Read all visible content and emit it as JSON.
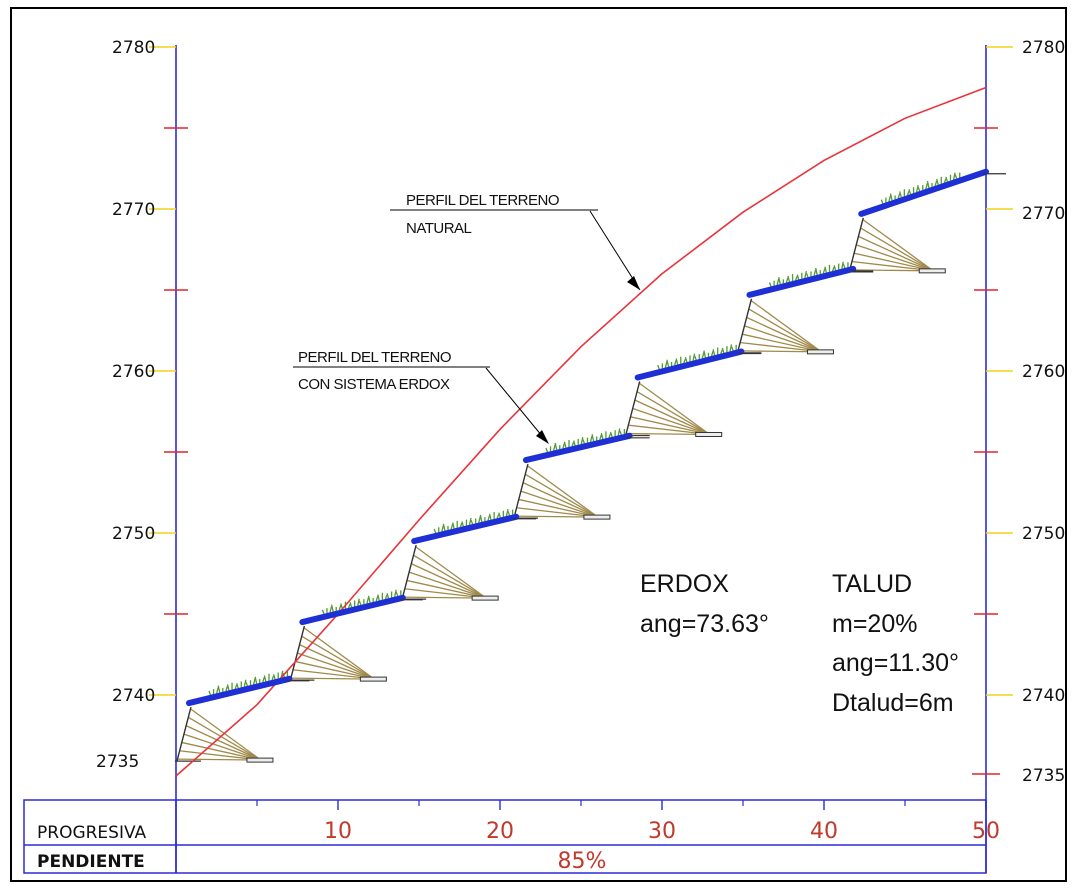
{
  "chart_data": {
    "type": "line",
    "ylim": [
      2735,
      2780
    ],
    "xlim": [
      0,
      50
    ],
    "y_ticks": [
      "2780",
      "2770",
      "2760",
      "2750",
      "2740",
      "2735"
    ],
    "x_ticks": [
      "10",
      "20",
      "30",
      "40",
      "50"
    ],
    "series": [
      {
        "name": "PERFIL DEL TERRENO NATURAL",
        "color": "#e8333a",
        "x": [
          0,
          5,
          10,
          15,
          20,
          25,
          30,
          35,
          40,
          45,
          50
        ],
        "y": [
          2735,
          2739.4,
          2745,
          2750.8,
          2756.4,
          2761.5,
          2766,
          2769.8,
          2773,
          2775.6,
          2777.5
        ]
      },
      {
        "name": "PERFIL DEL TERRENO CON SISTEMA ERDOX",
        "color": "#1e2fd6",
        "steps": [
          {
            "x_start": 0.8,
            "x_end": 7,
            "y_start": 2739.5,
            "y_end": 2741
          },
          {
            "x_start": 7.8,
            "x_end": 14,
            "y_start": 2744.5,
            "y_end": 2746
          },
          {
            "x_start": 14.7,
            "x_end": 21,
            "y_start": 2749.5,
            "y_end": 2751
          },
          {
            "x_start": 21.6,
            "x_end": 28,
            "y_start": 2754.5,
            "y_end": 2756
          },
          {
            "x_start": 28.5,
            "x_end": 34.9,
            "y_start": 2759.6,
            "y_end": 2761.2
          },
          {
            "x_start": 35.4,
            "x_end": 41.8,
            "y_start": 2764.7,
            "y_end": 2766.3
          },
          {
            "x_start": 42.3,
            "x_end": 50,
            "y_start": 2769.7,
            "y_end": 2772.3
          }
        ]
      }
    ]
  },
  "annotations": {
    "natural_line1": "PERFIL DEL TERRENO",
    "natural_line2": "NATURAL",
    "erdox_line1": "PERFIL DEL TERRENO",
    "erdox_line2": "CON SISTEMA ERDOX"
  },
  "erdox": {
    "title": "ERDOX",
    "angle": "ang=73.63°"
  },
  "talud": {
    "title": "TALUD",
    "m": "m=20%",
    "angle": "ang=11.30°",
    "dtalud": "Dtalud=6m"
  },
  "table": {
    "row1_label": "PROGRESIVA",
    "row2_label": "PENDIENTE",
    "pendiente_value": "85%"
  },
  "colors": {
    "axis": "#2b2bd6",
    "natural": "#e8333a",
    "erdox": "#1e2fd6",
    "tick_red": "#e0262b",
    "tick_yellow": "#f2d21b",
    "grass": "#4f9b2f",
    "anchors": "#a08a4a"
  }
}
